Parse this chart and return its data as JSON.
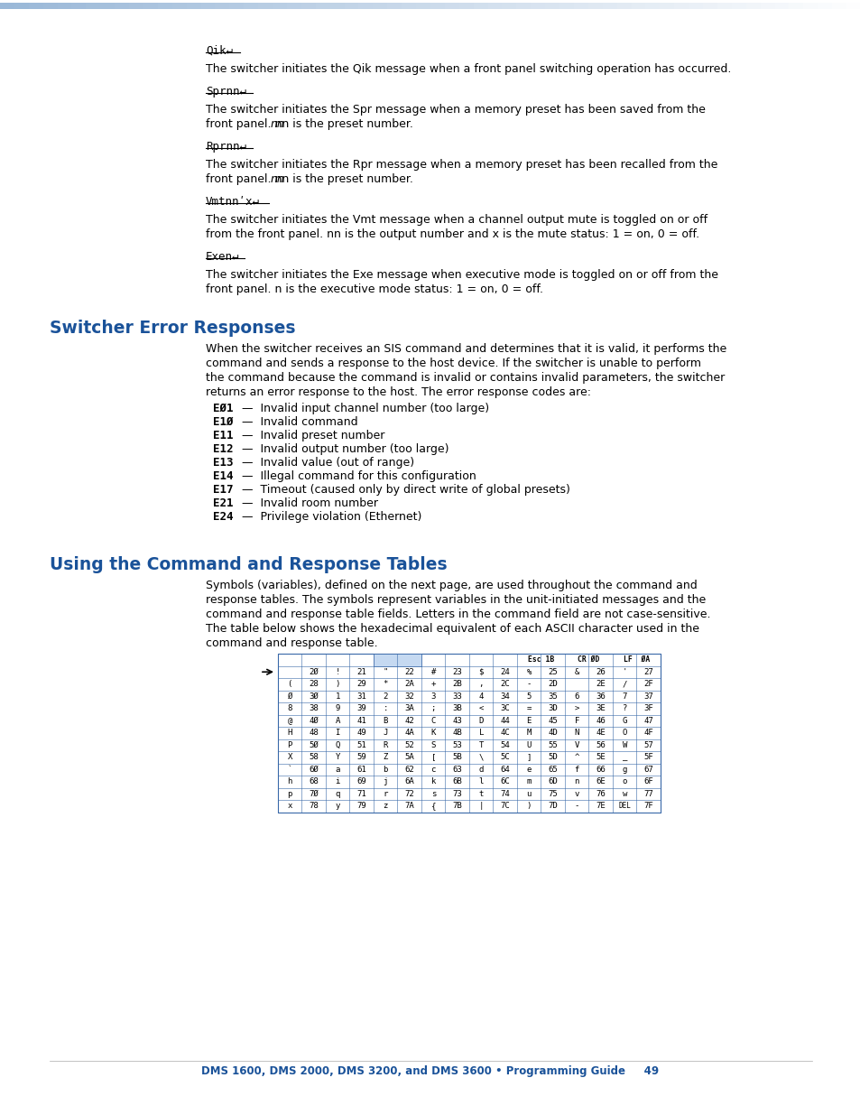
{
  "bg_color": "#ffffff",
  "blue_heading": "#1a5299",
  "footer_text_color": "#1a5299",
  "section1_heading": "Switcher Error Responses",
  "section2_heading": "Using the Command and Response Tables",
  "error_codes": [
    {
      "code": "EØ1",
      "desc": "—  Invalid input channel number (too large)"
    },
    {
      "code": "E1Ø",
      "desc": "—  Invalid command"
    },
    {
      "code": "E11",
      "desc": "—  Invalid preset number"
    },
    {
      "code": "E12",
      "desc": "—  Invalid output number (too large)"
    },
    {
      "code": "E13",
      "desc": "—  Invalid value (out of range)"
    },
    {
      "code": "E14",
      "desc": "—  Illegal command for this configuration"
    },
    {
      "code": "E17",
      "desc": "—  Timeout (caused only by direct write of global presets)"
    },
    {
      "code": "E21",
      "desc": "—  Invalid room number"
    },
    {
      "code": "E24",
      "desc": "—  Privilege violation (Ethernet)"
    }
  ],
  "table_rows": [
    [
      "",
      "2Ø",
      "!",
      "21",
      "\"",
      "22",
      "#",
      "23",
      "$",
      "24",
      "%",
      "25",
      "&",
      "26",
      "'",
      "27"
    ],
    [
      "(",
      "28",
      ")",
      "29",
      "*",
      "2A",
      "+",
      "2B",
      ",",
      "2C",
      "-",
      "2D",
      "",
      "2E",
      "/",
      "2F"
    ],
    [
      "Ø",
      "3Ø",
      "1",
      "31",
      "2",
      "32",
      "3",
      "33",
      "4",
      "34",
      "5",
      "35",
      "6",
      "36",
      "7",
      "37"
    ],
    [
      "8",
      "38",
      "9",
      "39",
      ":",
      "3A",
      ";",
      "3B",
      "<",
      "3C",
      "=",
      "3D",
      ">",
      "3E",
      "?",
      "3F"
    ],
    [
      "@",
      "4Ø",
      "A",
      "41",
      "B",
      "42",
      "C",
      "43",
      "D",
      "44",
      "E",
      "45",
      "F",
      "46",
      "G",
      "47"
    ],
    [
      "H",
      "48",
      "I",
      "49",
      "J",
      "4A",
      "K",
      "4B",
      "L",
      "4C",
      "M",
      "4D",
      "N",
      "4E",
      "O",
      "4F"
    ],
    [
      "P",
      "5Ø",
      "Q",
      "51",
      "R",
      "52",
      "S",
      "53",
      "T",
      "54",
      "U",
      "55",
      "V",
      "56",
      "W",
      "57"
    ],
    [
      "X",
      "58",
      "Y",
      "59",
      "Z",
      "5A",
      "[",
      "5B",
      "\\",
      "5C",
      "]",
      "5D",
      "^",
      "5E",
      "_",
      "5F"
    ],
    [
      "`",
      "6Ø",
      "a",
      "61",
      "b",
      "62",
      "c",
      "63",
      "d",
      "64",
      "e",
      "65",
      "f",
      "66",
      "g",
      "67"
    ],
    [
      "h",
      "68",
      "i",
      "69",
      "j",
      "6A",
      "k",
      "6B",
      "l",
      "6C",
      "m",
      "6D",
      "n",
      "6E",
      "o",
      "6F"
    ],
    [
      "p",
      "7Ø",
      "q",
      "71",
      "r",
      "72",
      "s",
      "73",
      "t",
      "74",
      "u",
      "75",
      "v",
      "76",
      "w",
      "77"
    ],
    [
      "x",
      "78",
      "y",
      "79",
      "z",
      "7A",
      "{",
      "7B",
      "|",
      "7C",
      ")",
      "7D",
      "-",
      "7E",
      "DEL",
      "7F"
    ]
  ],
  "footer_text": "DMS 1600, DMS 2000, DMS 3200, and DMS 3600 • Programming Guide     49"
}
